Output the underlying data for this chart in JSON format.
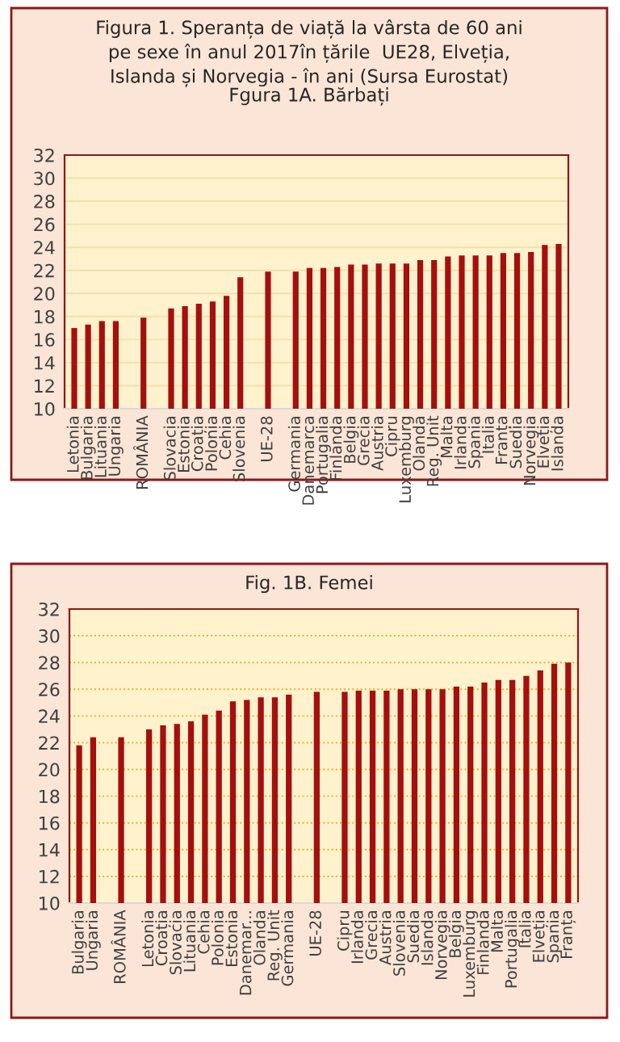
{
  "chart_data": [
    {
      "type": "bar",
      "title": "Figura 1. Speranța de viață la vârsta de 60 ani\npe sexe în anul 2017în țările  UE28, Elveția,\nIslanda și Norvegia - în ani (Sursa Eurostat)",
      "subtitle": "Fgura 1A. Bărbați",
      "categories": [
        "Letonia",
        "Bulgaria",
        "Lituania",
        "Ungaria",
        null,
        "ROMÂNIA",
        null,
        "Slovacia",
        "Estonia",
        "Croația",
        "Polonia",
        "Cehia",
        "Slovenia",
        null,
        "UE-28",
        null,
        "Germania",
        "Danemarca",
        "Portugalia",
        "Finlanda",
        "Belgia",
        "Grecia",
        "Austria",
        "Cipru",
        "Luxemburg",
        "Olanda",
        "Reg. Unit",
        "Malta",
        "Irlanda",
        "Spania",
        "Italia",
        "Franța",
        "Suedia",
        "Norvegia",
        "Elveția",
        "Islanda"
      ],
      "values": [
        17.0,
        17.3,
        17.6,
        17.6,
        null,
        17.9,
        null,
        18.7,
        18.9,
        19.1,
        19.3,
        19.8,
        21.4,
        null,
        21.9,
        null,
        21.9,
        22.2,
        22.2,
        22.3,
        22.5,
        22.5,
        22.6,
        22.6,
        22.6,
        22.9,
        22.9,
        23.2,
        23.3,
        23.3,
        23.3,
        23.5,
        23.5,
        23.6,
        24.2,
        24.3
      ],
      "color": "#a50f0f",
      "ylim": [
        10,
        32
      ],
      "yticks": [
        10,
        12,
        14,
        16,
        18,
        20,
        22,
        24,
        26,
        28,
        30,
        32
      ],
      "grid": "y",
      "line_style": "solid"
    },
    {
      "type": "bar",
      "title": "Fig. 1B. Femei",
      "categories": [
        "Bulgaria",
        "Ungaria",
        null,
        "ROMÂNIA",
        null,
        "Letonia",
        "Croația",
        "Slovacia",
        "Lituania",
        "Cehia",
        "Polonia",
        "Estonia",
        "Danemar...",
        "Olanda",
        "Reg. Unit",
        "Germania",
        null,
        "UE-28",
        null,
        "Cipru",
        "Irlanda",
        "Grecia",
        "Austria",
        "Slovenia",
        "Suedia",
        "Islanda",
        "Norvegia",
        "Belgia",
        "Luxemburg",
        "Finlanda",
        "Malta",
        "Portugalia",
        "Italia",
        "Elveția",
        "Spania",
        "Franța"
      ],
      "values": [
        21.8,
        22.4,
        null,
        22.4,
        null,
        23.0,
        23.3,
        23.4,
        23.6,
        24.1,
        24.4,
        25.1,
        25.2,
        25.4,
        25.4,
        25.6,
        null,
        25.8,
        null,
        25.8,
        25.9,
        25.9,
        25.9,
        26.0,
        26.0,
        26.0,
        26.0,
        26.2,
        26.2,
        26.5,
        26.7,
        26.7,
        27.0,
        27.4,
        27.9,
        28.0
      ],
      "color": "#a50f0f",
      "ylim": [
        10,
        32
      ],
      "yticks": [
        10,
        12,
        14,
        16,
        18,
        20,
        22,
        24,
        26,
        28,
        30,
        32
      ],
      "grid": "y",
      "line_style": "dotted"
    }
  ]
}
